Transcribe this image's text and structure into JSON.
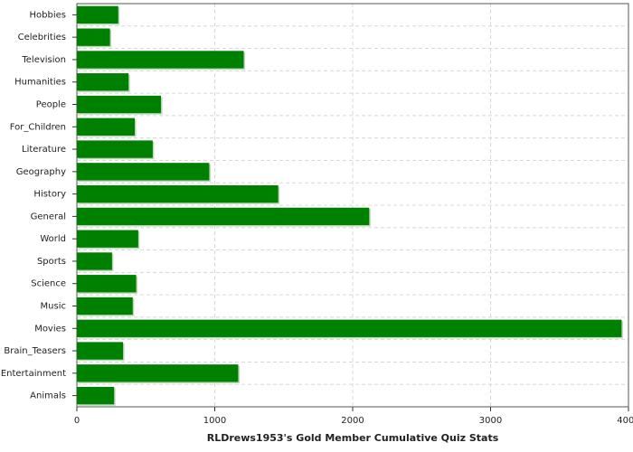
{
  "chart_data": {
    "type": "barh",
    "x_label": "RLDrews1953's Gold Member Cumulative Quiz Stats",
    "categories": [
      "Hobbies",
      "Celebrities",
      "Television",
      "Humanities",
      "People",
      "For_Children",
      "Literature",
      "Geography",
      "History",
      "General",
      "World",
      "Sports",
      "Science",
      "Music",
      "Movies",
      "Brain_Teasers",
      "Entertainment",
      "Animals"
    ],
    "values": [
      300,
      240,
      1210,
      375,
      610,
      420,
      550,
      960,
      1460,
      2120,
      445,
      255,
      430,
      405,
      3950,
      335,
      1170,
      270
    ],
    "color": "#008000",
    "xlim": [
      0,
      4000
    ],
    "xticks": [
      0,
      1000,
      2000,
      3000,
      4000
    ],
    "grid": true
  }
}
